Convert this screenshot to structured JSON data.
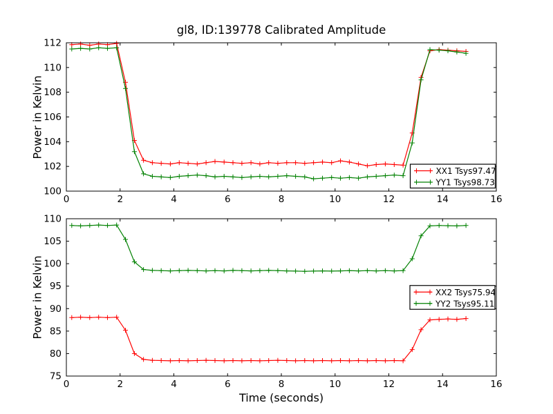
{
  "figure": {
    "background": "#ffffff",
    "frame_color": "#000000"
  },
  "chart_data": [
    {
      "type": "line",
      "title": "gl8, ID:139778 Calibrated Amplitude",
      "xlabel": "",
      "ylabel": "Power in Kelvin",
      "xlim": [
        0,
        16
      ],
      "ylim": [
        100,
        112
      ],
      "xticks": [
        0,
        2,
        4,
        6,
        8,
        10,
        12,
        14,
        16
      ],
      "yticks": [
        100,
        102,
        104,
        106,
        108,
        110,
        112
      ],
      "grid": false,
      "legend_loc": "lower right",
      "x": [
        0.2,
        0.53,
        0.87,
        1.2,
        1.53,
        1.87,
        2.2,
        2.53,
        2.87,
        3.2,
        3.53,
        3.87,
        4.2,
        4.53,
        4.87,
        5.2,
        5.53,
        5.87,
        6.2,
        6.53,
        6.87,
        7.2,
        7.53,
        7.87,
        8.2,
        8.53,
        8.87,
        9.2,
        9.53,
        9.87,
        10.2,
        10.53,
        10.87,
        11.2,
        11.53,
        11.87,
        12.2,
        12.53,
        12.87,
        13.2,
        13.53,
        13.87,
        14.2,
        14.53,
        14.87
      ],
      "series": [
        {
          "name": "XX1 Tsys97.47",
          "color": "#ff0000",
          "marker": "+",
          "values": [
            111.85,
            111.9,
            111.8,
            111.9,
            111.85,
            111.95,
            108.8,
            104.1,
            102.5,
            102.3,
            102.25,
            102.2,
            102.3,
            102.25,
            102.2,
            102.3,
            102.4,
            102.35,
            102.3,
            102.25,
            102.3,
            102.2,
            102.3,
            102.25,
            102.3,
            102.3,
            102.25,
            102.3,
            102.35,
            102.3,
            102.45,
            102.35,
            102.2,
            102.05,
            102.15,
            102.2,
            102.15,
            102.1,
            104.7,
            109.2,
            111.35,
            111.45,
            111.4,
            111.35,
            111.3
          ]
        },
        {
          "name": "YY1 Tsys98.73",
          "color": "#008000",
          "marker": "+",
          "values": [
            111.5,
            111.55,
            111.5,
            111.6,
            111.55,
            111.6,
            108.3,
            103.2,
            101.4,
            101.2,
            101.15,
            101.1,
            101.2,
            101.25,
            101.3,
            101.25,
            101.15,
            101.2,
            101.15,
            101.1,
            101.15,
            101.2,
            101.15,
            101.2,
            101.25,
            101.2,
            101.15,
            101.0,
            101.05,
            101.1,
            101.05,
            101.1,
            101.05,
            101.15,
            101.2,
            101.25,
            101.3,
            101.25,
            103.9,
            109.0,
            111.45,
            111.4,
            111.35,
            111.25,
            111.15
          ]
        }
      ]
    },
    {
      "type": "line",
      "title": "",
      "xlabel": "Time (seconds)",
      "ylabel": "Power in Kelvin",
      "xlim": [
        0,
        16
      ],
      "ylim": [
        75,
        110
      ],
      "xticks": [
        0,
        2,
        4,
        6,
        8,
        10,
        12,
        14,
        16
      ],
      "yticks": [
        75,
        80,
        85,
        90,
        95,
        100,
        105,
        110
      ],
      "grid": false,
      "legend_loc": "center right",
      "x": [
        0.2,
        0.53,
        0.87,
        1.2,
        1.53,
        1.87,
        2.2,
        2.53,
        2.87,
        3.2,
        3.53,
        3.87,
        4.2,
        4.53,
        4.87,
        5.2,
        5.53,
        5.87,
        6.2,
        6.53,
        6.87,
        7.2,
        7.53,
        7.87,
        8.2,
        8.53,
        8.87,
        9.2,
        9.53,
        9.87,
        10.2,
        10.53,
        10.87,
        11.2,
        11.53,
        11.87,
        12.2,
        12.53,
        12.87,
        13.2,
        13.53,
        13.87,
        14.2,
        14.53,
        14.87
      ],
      "series": [
        {
          "name": "XX2 Tsys75.94",
          "color": "#ff0000",
          "marker": "+",
          "values": [
            88.0,
            88.1,
            88.0,
            88.1,
            88.0,
            88.1,
            85.2,
            80.0,
            78.7,
            78.5,
            78.45,
            78.4,
            78.45,
            78.4,
            78.45,
            78.5,
            78.45,
            78.4,
            78.45,
            78.4,
            78.45,
            78.4,
            78.45,
            78.5,
            78.45,
            78.4,
            78.45,
            78.4,
            78.45,
            78.4,
            78.45,
            78.4,
            78.45,
            78.4,
            78.45,
            78.4,
            78.45,
            78.4,
            80.9,
            85.3,
            87.5,
            87.6,
            87.7,
            87.6,
            87.8
          ]
        },
        {
          "name": "YY2 Tsys95.11",
          "color": "#008000",
          "marker": "+",
          "values": [
            108.5,
            108.4,
            108.5,
            108.6,
            108.5,
            108.6,
            105.4,
            100.4,
            98.7,
            98.5,
            98.45,
            98.4,
            98.45,
            98.5,
            98.45,
            98.4,
            98.45,
            98.4,
            98.5,
            98.45,
            98.4,
            98.45,
            98.5,
            98.45,
            98.4,
            98.35,
            98.3,
            98.35,
            98.4,
            98.35,
            98.4,
            98.45,
            98.4,
            98.45,
            98.4,
            98.45,
            98.4,
            98.45,
            101.1,
            106.2,
            108.4,
            108.5,
            108.45,
            108.4,
            108.5
          ]
        }
      ]
    }
  ]
}
